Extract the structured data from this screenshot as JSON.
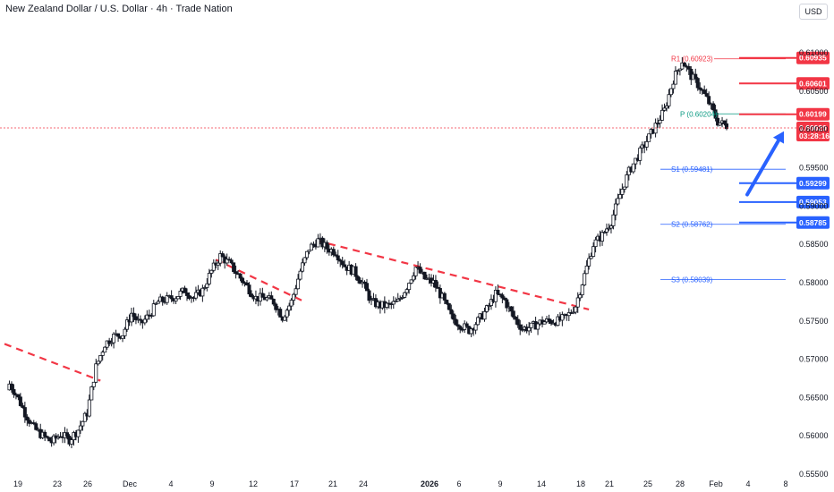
{
  "header": {
    "title": "New Zealand Dollar / U.S. Dollar · 4h · Trade Nation",
    "currency": "USD"
  },
  "colors": {
    "up": "#ffffff",
    "down": "#131722",
    "resistance": "#f23645",
    "support": "#2962ff",
    "trendline": "#f23645",
    "pivot_p": "#089981",
    "arrow": "#2962ff"
  },
  "chart_data": {
    "type": "candlestick",
    "ylim": [
      0.555,
      0.612
    ],
    "yticks": [
      "0.61000",
      "0.60500",
      "0.60000",
      "0.59500",
      "0.59000",
      "0.58500",
      "0.58000",
      "0.57500",
      "0.57000",
      "0.56500",
      "0.56000",
      "0.55500"
    ],
    "xticks": [
      {
        "label": "19",
        "bold": false
      },
      {
        "label": "23",
        "bold": false
      },
      {
        "label": "26",
        "bold": false
      },
      {
        "label": "Dec",
        "bold": false
      },
      {
        "label": "4",
        "bold": false
      },
      {
        "label": "9",
        "bold": false
      },
      {
        "label": "12",
        "bold": false
      },
      {
        "label": "17",
        "bold": false
      },
      {
        "label": "21",
        "bold": false
      },
      {
        "label": "24",
        "bold": false
      },
      {
        "label": "2026",
        "bold": true
      },
      {
        "label": "6",
        "bold": false
      },
      {
        "label": "9",
        "bold": false
      },
      {
        "label": "14",
        "bold": false
      },
      {
        "label": "18",
        "bold": false
      },
      {
        "label": "21",
        "bold": false
      },
      {
        "label": "25",
        "bold": false
      },
      {
        "label": "28",
        "bold": false
      },
      {
        "label": "Feb",
        "bold": false
      },
      {
        "label": "4",
        "bold": false
      },
      {
        "label": "8",
        "bold": false
      }
    ],
    "anchors": [
      [
        0.566,
        0.5672
      ],
      [
        0.5648,
        0.5655
      ],
      [
        0.5625,
        0.563
      ],
      [
        0.5605,
        0.561
      ],
      [
        0.5585,
        0.56
      ],
      [
        0.5588,
        0.5592
      ],
      [
        0.5598,
        0.5602
      ],
      [
        0.559,
        0.5595
      ],
      [
        0.56,
        0.5608
      ],
      [
        0.562,
        0.563
      ],
      [
        0.5685,
        0.569
      ],
      [
        0.5715,
        0.572
      ],
      [
        0.5725,
        0.573
      ],
      [
        0.5728,
        0.5733
      ],
      [
        0.5745,
        0.576
      ],
      [
        0.574,
        0.5745
      ],
      [
        0.575,
        0.5758
      ],
      [
        0.5765,
        0.5775
      ],
      [
        0.577,
        0.5778
      ],
      [
        0.5775,
        0.5782
      ],
      [
        0.5785,
        0.579
      ],
      [
        0.5775,
        0.578
      ],
      [
        0.5785,
        0.579
      ],
      [
        0.58,
        0.5815
      ],
      [
        0.583,
        0.5835
      ],
      [
        0.582,
        0.5825
      ],
      [
        0.58,
        0.581
      ],
      [
        0.5785,
        0.5795
      ],
      [
        0.577,
        0.578
      ],
      [
        0.5775,
        0.578
      ],
      [
        0.5765,
        0.5775
      ],
      [
        0.5745,
        0.5755
      ],
      [
        0.576,
        0.5775
      ],
      [
        0.58,
        0.5815
      ],
      [
        0.5835,
        0.5845
      ],
      [
        0.5848,
        0.5855
      ],
      [
        0.584,
        0.5845
      ],
      [
        0.5835,
        0.584
      ],
      [
        0.5815,
        0.5822
      ],
      [
        0.581,
        0.5815
      ],
      [
        0.579,
        0.58
      ],
      [
        0.5765,
        0.5775
      ],
      [
        0.576,
        0.577
      ],
      [
        0.5765,
        0.577
      ],
      [
        0.5765,
        0.5775
      ],
      [
        0.578,
        0.5795
      ],
      [
        0.581,
        0.582
      ],
      [
        0.5798,
        0.5805
      ],
      [
        0.579,
        0.58
      ],
      [
        0.5775,
        0.578
      ],
      [
        0.575,
        0.5755
      ],
      [
        0.574,
        0.5745
      ],
      [
        0.5728,
        0.5738
      ],
      [
        0.574,
        0.575
      ],
      [
        0.5755,
        0.5765
      ],
      [
        0.578,
        0.5785
      ],
      [
        0.5772,
        0.5777
      ],
      [
        0.575,
        0.5755
      ],
      [
        0.5735,
        0.574
      ],
      [
        0.5738,
        0.5742
      ],
      [
        0.574,
        0.5748
      ],
      [
        0.5745,
        0.575
      ],
      [
        0.574,
        0.575
      ],
      [
        0.5745,
        0.5755
      ],
      [
        0.576,
        0.577
      ],
      [
        0.5795,
        0.581
      ],
      [
        0.584,
        0.585
      ],
      [
        0.5855,
        0.5862
      ],
      [
        0.587,
        0.588
      ],
      [
        0.5905,
        0.5915
      ],
      [
        0.5935,
        0.5945
      ],
      [
        0.5955,
        0.5965
      ],
      [
        0.5975,
        0.5985
      ],
      [
        0.5995,
        0.6005
      ],
      [
        0.601,
        0.6025
      ],
      [
        0.6055,
        0.6065
      ],
      [
        0.608,
        0.609
      ],
      [
        0.606,
        0.607
      ],
      [
        0.6045,
        0.6055
      ],
      [
        0.6025,
        0.6035
      ],
      [
        0.6,
        0.601
      ],
      [
        0.6002,
        0.6005
      ]
    ],
    "current_price": {
      "value": 0.6002,
      "label": "0.60020",
      "countdown": "03:28:16"
    },
    "pivots": [
      {
        "name": "R1",
        "label": "R1 (0.60923)",
        "value": 0.60923
      },
      {
        "name": "P",
        "label": "P (0.60204)",
        "value": 0.60204
      },
      {
        "name": "S1",
        "label": "S1 (0.59481)",
        "value": 0.59481
      },
      {
        "name": "S2",
        "label": "S2 (0.58762)",
        "value": 0.58762
      },
      {
        "name": "S3",
        "label": "S3 (0.58039)",
        "value": 0.58039
      }
    ],
    "resistance_levels": [
      {
        "label": "0.60935",
        "value": 0.60935
      },
      {
        "label": "0.60601",
        "value": 0.60601
      },
      {
        "label": "0.60199",
        "value": 0.60199
      }
    ],
    "support_levels": [
      {
        "label": "0.59299",
        "value": 0.59299
      },
      {
        "label": "0.59053",
        "value": 0.59053
      },
      {
        "label": "0.58785",
        "value": 0.58785
      }
    ],
    "trendlines": [
      {
        "from": [
          -0.3,
          0.572
        ],
        "to": [
          10.5,
          0.5672
        ]
      },
      {
        "from": [
          23.5,
          0.583
        ],
        "to": [
          33.5,
          0.5775
        ]
      },
      {
        "from": [
          34.8,
          0.5855
        ],
        "to": [
          65.5,
          0.5765
        ]
      }
    ],
    "arrow": {
      "from": [
        71.5,
        0.595
      ],
      "to": [
        76.5,
        0.6
      ]
    }
  }
}
